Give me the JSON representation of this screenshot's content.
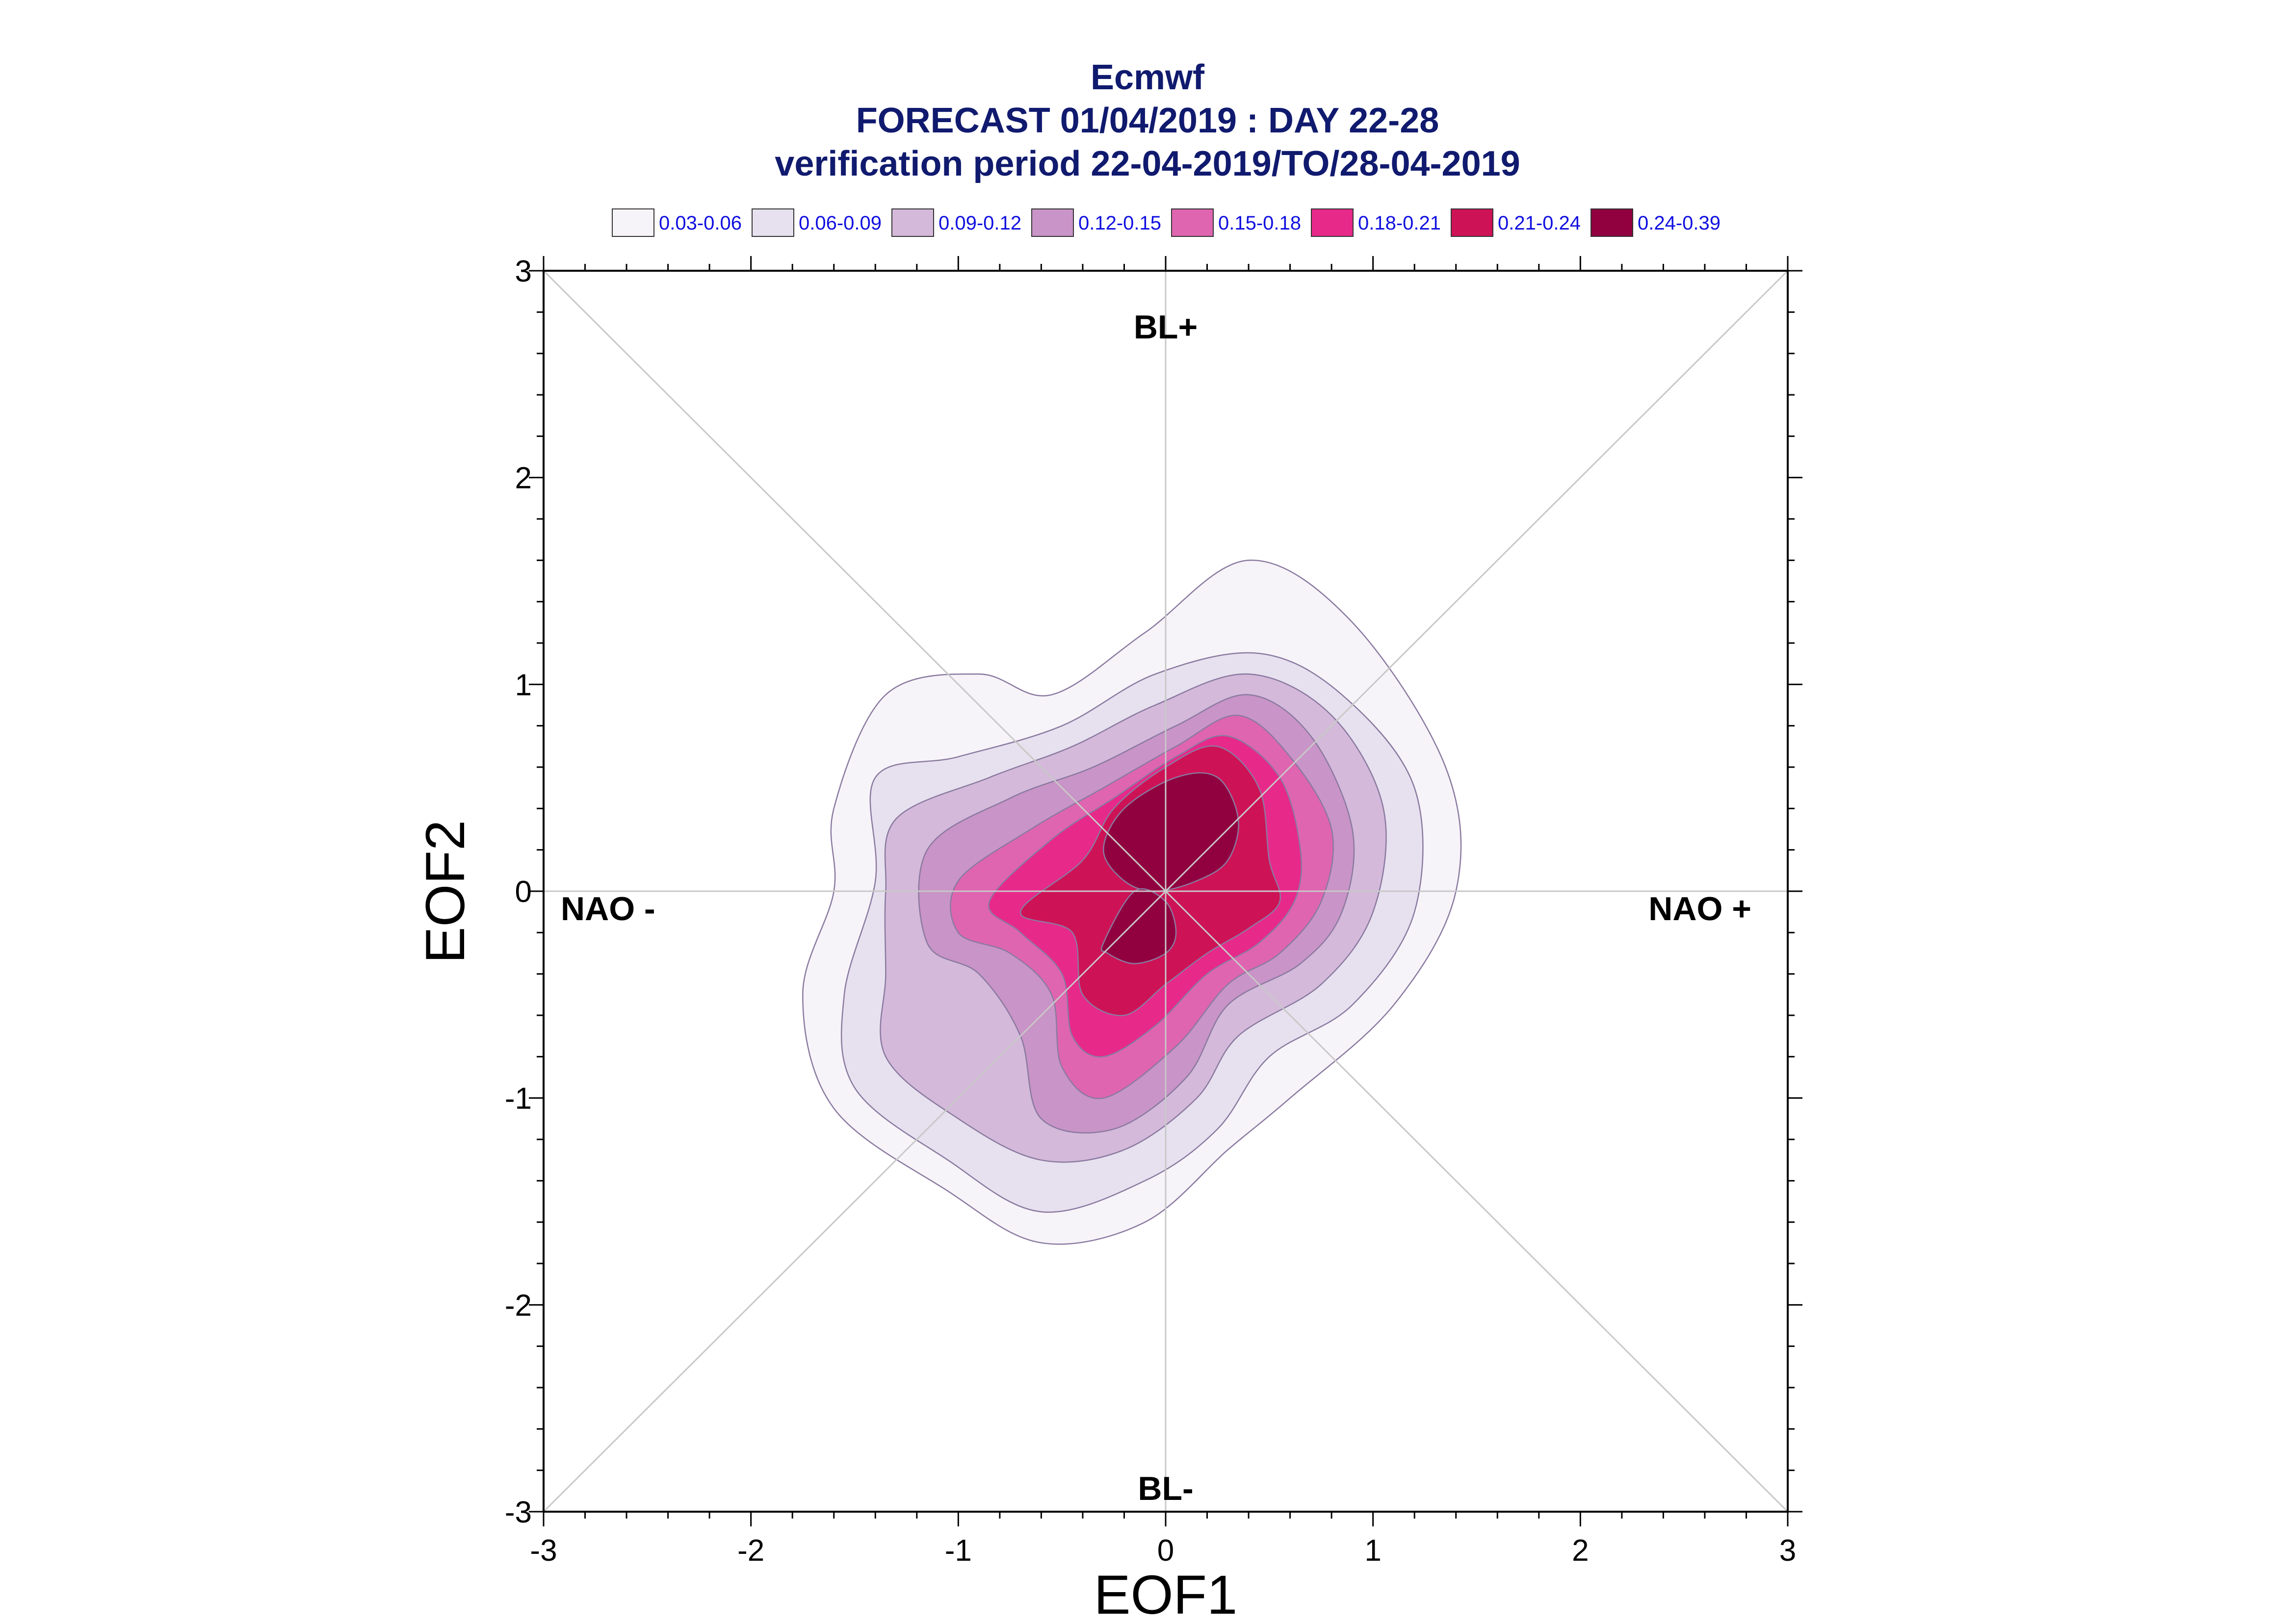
{
  "title": {
    "line1": "Ecmwf",
    "line2": "FORECAST 01/04/2019 : DAY 22-28",
    "line3": "verification period 22-04-2019/TO/28-04-2019"
  },
  "legend": [
    {
      "label": "0.03-0.06",
      "color": "#f7f4f9"
    },
    {
      "label": "0.06-0.09",
      "color": "#e7e1ef"
    },
    {
      "label": "0.09-0.12",
      "color": "#d4b9da"
    },
    {
      "label": "0.12-0.15",
      "color": "#c994c7"
    },
    {
      "label": "0.15-0.18",
      "color": "#df65b0"
    },
    {
      "label": "0.18-0.21",
      "color": "#e7298a"
    },
    {
      "label": "0.21-0.24",
      "color": "#ce1256"
    },
    {
      "label": "0.24-0.39",
      "color": "#91003f"
    }
  ],
  "quadrant_labels": {
    "top": "BL+",
    "bottom": "BL-",
    "left": "NAO -",
    "right": "NAO +"
  },
  "chart_data": {
    "type": "heatmap",
    "xlabel": "EOF1",
    "ylabel": "EOF2",
    "xlim": [
      -3,
      3
    ],
    "ylim": [
      -3,
      3
    ],
    "xticks": [
      "-3",
      "-2",
      "-1",
      "0",
      "1",
      "2",
      "3"
    ],
    "yticks": [
      "-3",
      "-2",
      "-1",
      "0",
      "1",
      "2",
      "3"
    ],
    "reference_lines": [
      "x=0",
      "y=0",
      "y=x",
      "y=-x"
    ],
    "contour_levels": [
      {
        "range": "0.03-0.06",
        "color": "#f7f4f9",
        "rings": [
          [
            [
              -0.9,
              1.05
            ],
            [
              -0.55,
              0.95
            ],
            [
              -0.1,
              1.25
            ],
            [
              0.4,
              1.6
            ],
            [
              0.9,
              1.3
            ],
            [
              1.35,
              0.6
            ],
            [
              1.4,
              0.0
            ],
            [
              1.1,
              -0.55
            ],
            [
              0.6,
              -1.0
            ],
            [
              0.3,
              -1.25
            ],
            [
              -0.1,
              -1.6
            ],
            [
              -0.6,
              -1.7
            ],
            [
              -1.05,
              -1.45
            ],
            [
              -1.6,
              -1.05
            ],
            [
              -1.75,
              -0.5
            ],
            [
              -1.6,
              0.0
            ],
            [
              -1.6,
              0.4
            ],
            [
              -1.35,
              0.95
            ]
          ]
        ]
      },
      {
        "range": "0.06-0.09",
        "color": "#e7e1ef",
        "rings": [
          [
            [
              -1.4,
              0.55
            ],
            [
              -1.0,
              0.65
            ],
            [
              -0.5,
              0.8
            ],
            [
              -0.05,
              1.05
            ],
            [
              0.45,
              1.15
            ],
            [
              0.85,
              0.95
            ],
            [
              1.2,
              0.5
            ],
            [
              1.2,
              -0.1
            ],
            [
              0.9,
              -0.55
            ],
            [
              0.5,
              -0.8
            ],
            [
              0.25,
              -1.15
            ],
            [
              -0.1,
              -1.4
            ],
            [
              -0.6,
              -1.55
            ],
            [
              -1.05,
              -1.3
            ],
            [
              -1.5,
              -0.95
            ],
            [
              -1.55,
              -0.5
            ],
            [
              -1.4,
              0.05
            ]
          ]
        ]
      },
      {
        "range": "0.09-0.12",
        "color": "#d4b9da",
        "rings": [
          [
            [
              -1.3,
              0.35
            ],
            [
              -0.85,
              0.55
            ],
            [
              -0.45,
              0.7
            ],
            [
              -0.05,
              0.9
            ],
            [
              0.4,
              1.05
            ],
            [
              0.8,
              0.85
            ],
            [
              1.05,
              0.4
            ],
            [
              1.0,
              -0.1
            ],
            [
              0.75,
              -0.45
            ],
            [
              0.35,
              -0.7
            ],
            [
              0.15,
              -1.0
            ],
            [
              -0.2,
              -1.25
            ],
            [
              -0.6,
              -1.3
            ],
            [
              -1.0,
              -1.1
            ],
            [
              -1.35,
              -0.8
            ],
            [
              -1.35,
              -0.4
            ],
            [
              -1.35,
              0.0
            ]
          ]
        ]
      },
      {
        "range": "0.12-0.15",
        "color": "#c994c7",
        "rings": [
          [
            [
              -1.15,
              0.2
            ],
            [
              -0.75,
              0.45
            ],
            [
              -0.35,
              0.6
            ],
            [
              0.05,
              0.8
            ],
            [
              0.4,
              0.95
            ],
            [
              0.7,
              0.75
            ],
            [
              0.9,
              0.3
            ],
            [
              0.85,
              -0.1
            ],
            [
              0.65,
              -0.35
            ],
            [
              0.3,
              -0.55
            ],
            [
              0.1,
              -0.9
            ],
            [
              -0.25,
              -1.15
            ],
            [
              -0.6,
              -1.1
            ],
            [
              -0.7,
              -0.7
            ],
            [
              -0.9,
              -0.4
            ],
            [
              -1.15,
              -0.25
            ]
          ]
        ]
      },
      {
        "range": "0.15-0.18",
        "color": "#df65b0",
        "rings": [
          [
            [
              -1.0,
              0.05
            ],
            [
              -0.65,
              0.3
            ],
            [
              -0.3,
              0.5
            ],
            [
              0.05,
              0.7
            ],
            [
              0.35,
              0.85
            ],
            [
              0.6,
              0.65
            ],
            [
              0.8,
              0.3
            ],
            [
              0.75,
              -0.05
            ],
            [
              0.55,
              -0.3
            ],
            [
              0.3,
              -0.45
            ],
            [
              0.05,
              -0.75
            ],
            [
              -0.3,
              -1.0
            ],
            [
              -0.5,
              -0.85
            ],
            [
              -0.55,
              -0.5
            ],
            [
              -0.75,
              -0.3
            ],
            [
              -1.0,
              -0.2
            ]
          ]
        ]
      },
      {
        "range": "0.18-0.21",
        "color": "#e7298a",
        "rings": [
          [
            [
              -0.85,
              -0.05
            ],
            [
              -0.55,
              0.25
            ],
            [
              -0.25,
              0.45
            ],
            [
              0.05,
              0.65
            ],
            [
              0.3,
              0.75
            ],
            [
              0.55,
              0.55
            ],
            [
              0.65,
              0.2
            ],
            [
              0.62,
              -0.05
            ],
            [
              0.45,
              -0.25
            ],
            [
              0.2,
              -0.4
            ],
            [
              -0.05,
              -0.65
            ],
            [
              -0.3,
              -0.8
            ],
            [
              -0.45,
              -0.7
            ],
            [
              -0.5,
              -0.4
            ],
            [
              -0.7,
              -0.2
            ]
          ]
        ]
      },
      {
        "range": "0.21-0.24",
        "color": "#ce1256",
        "rings": [
          [
            [
              -0.7,
              -0.1
            ],
            [
              -0.4,
              0.15
            ],
            [
              -0.25,
              0.4
            ],
            [
              0.0,
              0.6
            ],
            [
              0.25,
              0.7
            ],
            [
              0.45,
              0.5
            ],
            [
              0.5,
              0.15
            ],
            [
              0.55,
              -0.05
            ],
            [
              0.4,
              -0.18
            ],
            [
              0.2,
              -0.3
            ],
            [
              0.0,
              -0.45
            ],
            [
              -0.2,
              -0.6
            ],
            [
              -0.4,
              -0.5
            ],
            [
              -0.45,
              -0.2
            ]
          ]
        ]
      },
      {
        "range": "0.24-0.39",
        "color": "#91003f",
        "rings": [
          [
            [
              -0.3,
              0.2
            ],
            [
              -0.2,
              0.4
            ],
            [
              0.05,
              0.55
            ],
            [
              0.25,
              0.55
            ],
            [
              0.35,
              0.35
            ],
            [
              0.3,
              0.15
            ],
            [
              0.15,
              0.05
            ],
            [
              -0.05,
              0.0
            ],
            [
              -0.2,
              0.05
            ]
          ],
          [
            [
              -0.3,
              -0.25
            ],
            [
              -0.15,
              0.0
            ],
            [
              0.0,
              -0.05
            ],
            [
              0.05,
              -0.2
            ],
            [
              0.0,
              -0.3
            ],
            [
              -0.15,
              -0.35
            ],
            [
              -0.28,
              -0.3
            ]
          ]
        ]
      }
    ]
  }
}
